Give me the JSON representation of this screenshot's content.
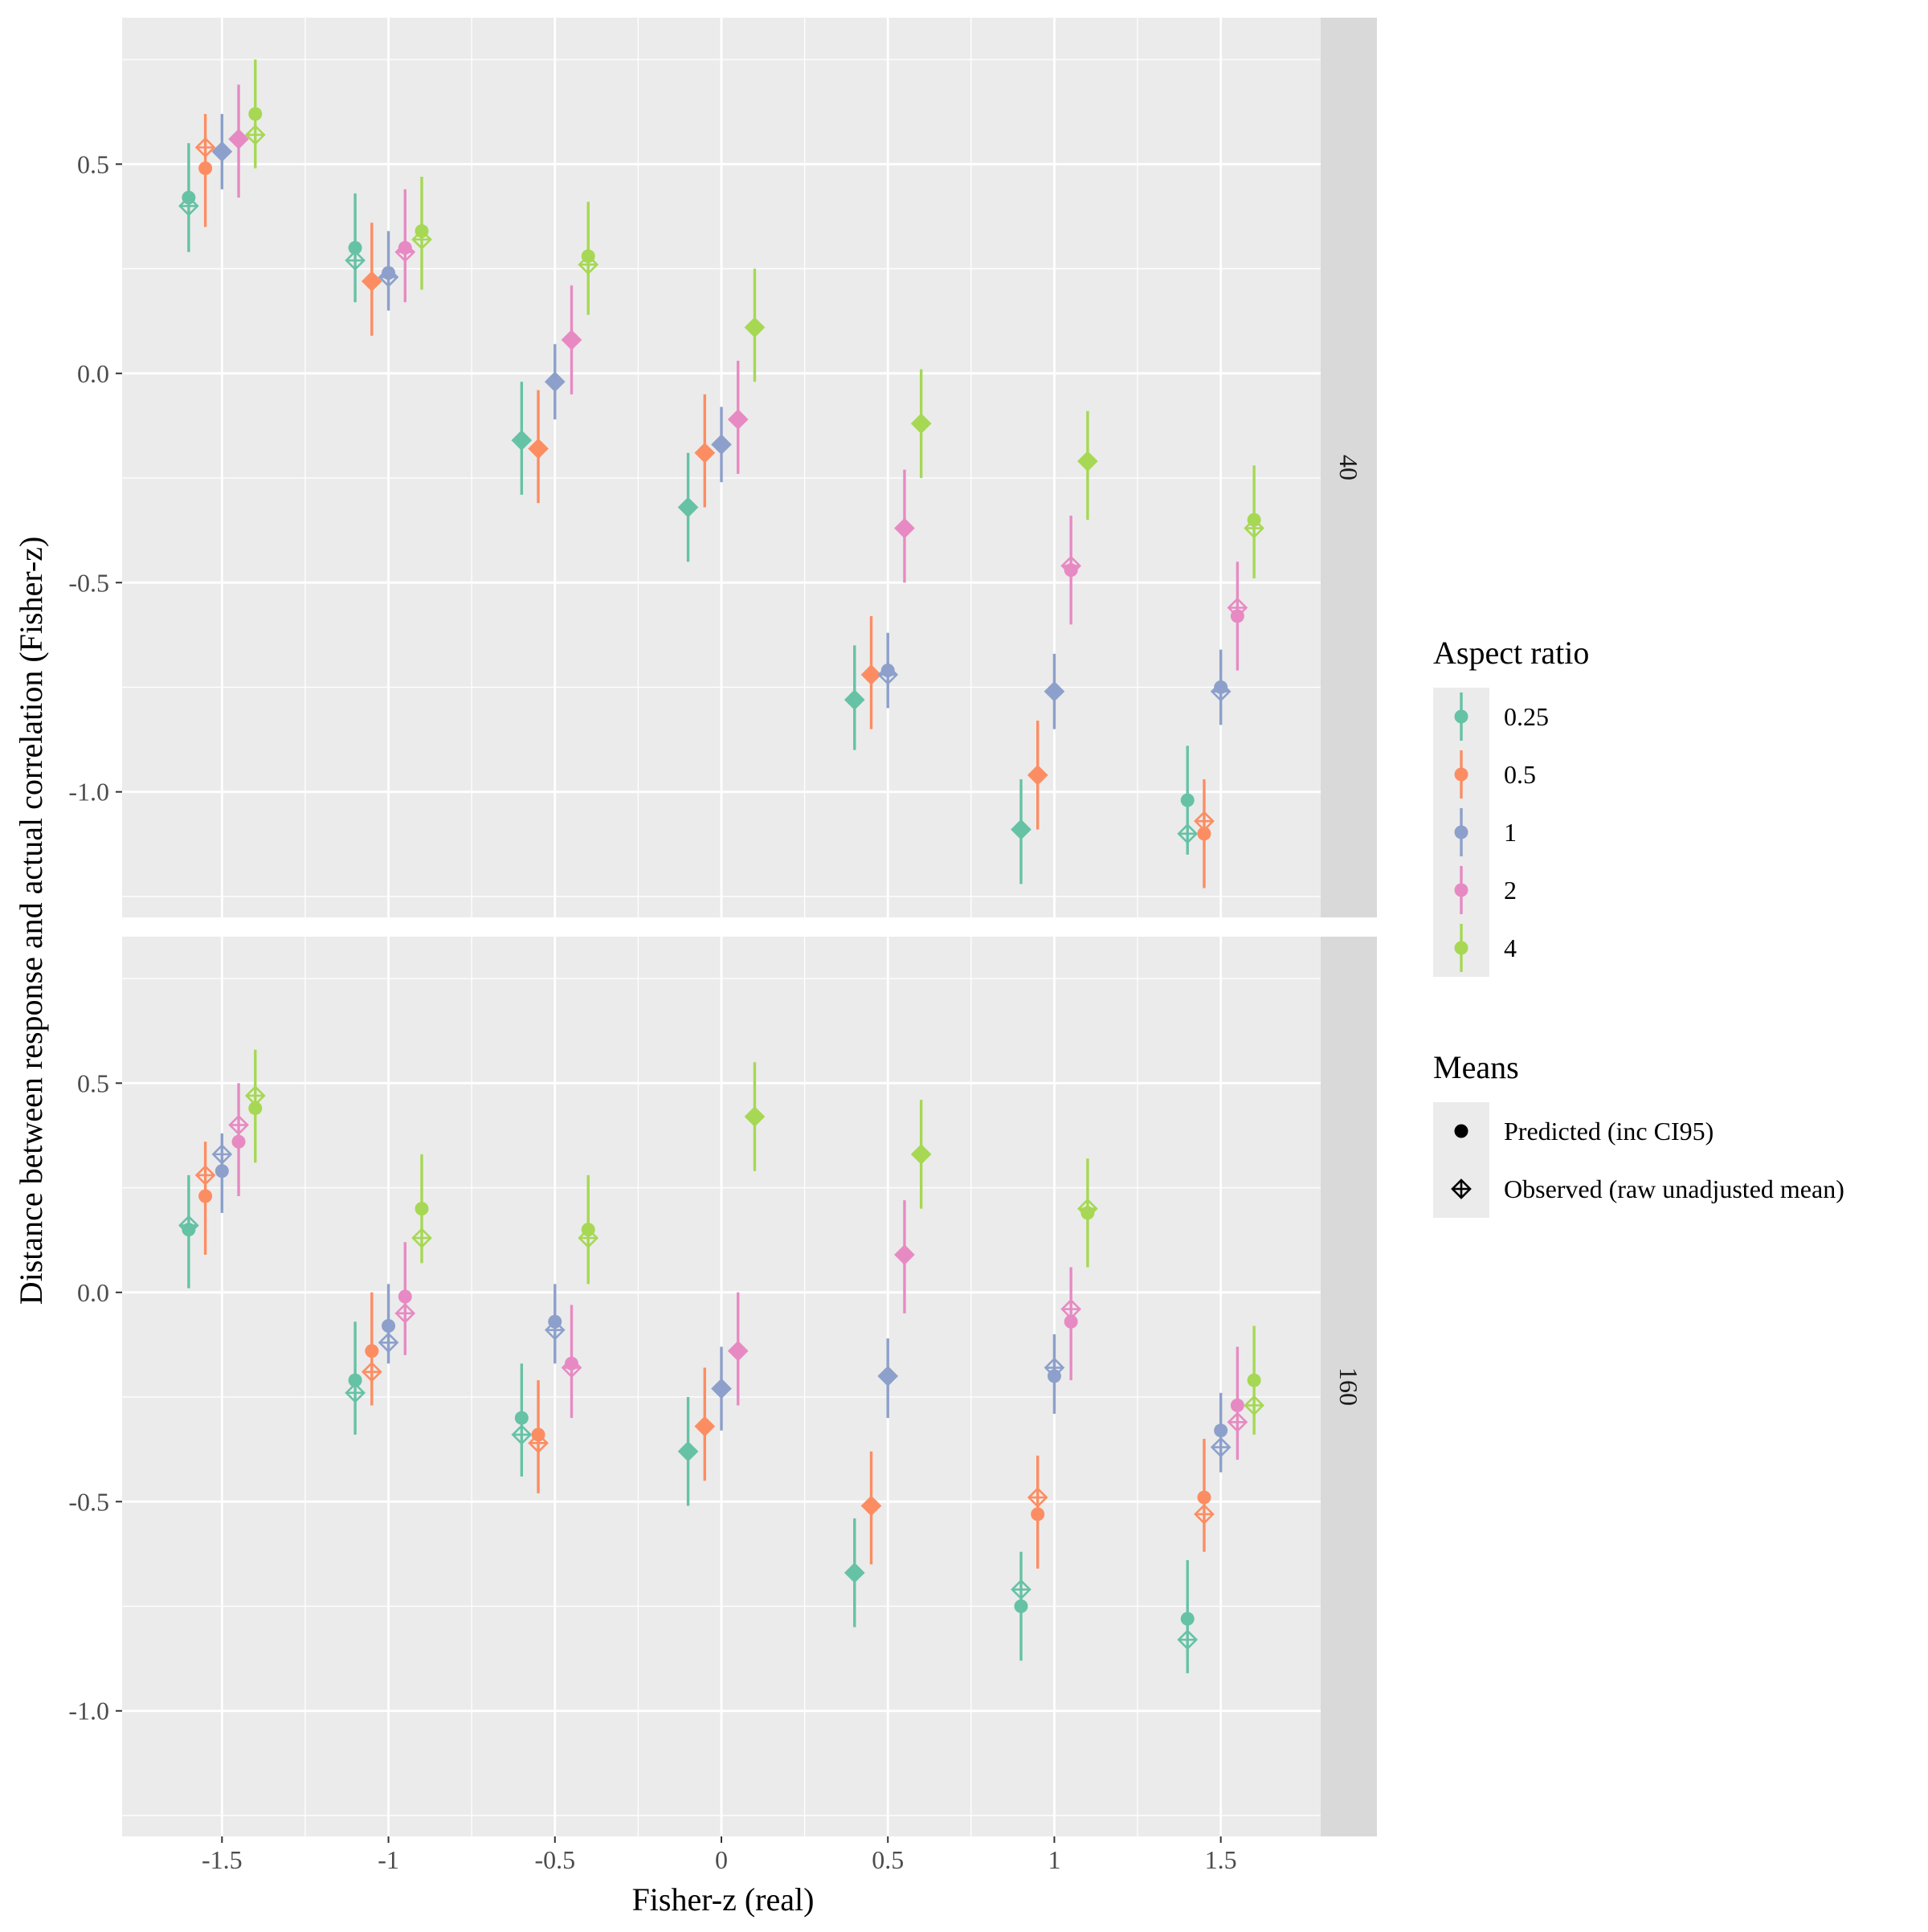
{
  "chart_data": {
    "type": "scatter",
    "title": "",
    "xlabel": "Fisher-z (real)",
    "ylabel": "Distance between response and actual correlation (Fisher-z)",
    "x_ticks": [
      -1.5,
      -1,
      -0.5,
      0,
      0.5,
      1,
      1.5
    ],
    "x_tick_labels": [
      "-1.5",
      "-1",
      "-0.5",
      "0",
      "0.5",
      "1",
      "1.5"
    ],
    "y_ticks": [
      0.5,
      0.0,
      -0.5,
      -1.0
    ],
    "y_tick_labels": [
      "0.5",
      "0.0",
      "-0.5",
      "-1.0"
    ],
    "xlim": [
      -1.8,
      1.8
    ],
    "ylim": [
      -1.3,
      0.85
    ],
    "dodge": [
      -0.1,
      -0.05,
      0,
      0.05,
      0.1
    ],
    "legend": {
      "aspect": {
        "title": "Aspect ratio",
        "entries": [
          {
            "label": "0.25",
            "color": "#66C2A5"
          },
          {
            "label": "0.5",
            "color": "#FC8D62"
          },
          {
            "label": "1",
            "color": "#8DA0CB"
          },
          {
            "label": "2",
            "color": "#E78AC3"
          },
          {
            "label": "4",
            "color": "#A6D854"
          }
        ]
      },
      "means": {
        "title": "Means",
        "entries": [
          {
            "label": "Predicted (inc CI95)",
            "shape": "circle"
          },
          {
            "label": "Observed (raw unadjusted mean)",
            "shape": "diamond-plus"
          }
        ]
      }
    },
    "panels": [
      {
        "strip": "40",
        "series": [
          {
            "name": "0.25",
            "x": [
              -1.5,
              -1,
              -0.5,
              0,
              0.5,
              1,
              1.5
            ],
            "predicted": [
              0.42,
              0.3,
              -0.16,
              -0.32,
              -0.78,
              -1.09,
              -1.02
            ],
            "lower": [
              0.29,
              0.17,
              -0.29,
              -0.45,
              -0.9,
              -1.22,
              -1.15
            ],
            "upper": [
              0.55,
              0.43,
              -0.02,
              -0.19,
              -0.65,
              -0.97,
              -0.89
            ],
            "observed": [
              0.4,
              0.27,
              -0.16,
              -0.32,
              -0.78,
              -1.09,
              -1.1
            ]
          },
          {
            "name": "0.5",
            "x": [
              -1.5,
              -1,
              -0.5,
              0,
              0.5,
              1,
              1.5
            ],
            "predicted": [
              0.49,
              0.22,
              -0.18,
              -0.19,
              -0.72,
              -0.96,
              -1.1
            ],
            "lower": [
              0.35,
              0.09,
              -0.31,
              -0.32,
              -0.85,
              -1.09,
              -1.23
            ],
            "upper": [
              0.62,
              0.36,
              -0.04,
              -0.05,
              -0.58,
              -0.83,
              -0.97
            ],
            "observed": [
              0.54,
              0.22,
              -0.18,
              -0.19,
              -0.72,
              -0.96,
              -1.07
            ]
          },
          {
            "name": "1",
            "x": [
              -1.5,
              -1,
              -0.5,
              0,
              0.5,
              1,
              1.5
            ],
            "predicted": [
              0.53,
              0.24,
              -0.02,
              -0.17,
              -0.71,
              -0.76,
              -0.75
            ],
            "lower": [
              0.44,
              0.15,
              -0.11,
              -0.26,
              -0.8,
              -0.85,
              -0.84
            ],
            "upper": [
              0.62,
              0.34,
              0.07,
              -0.08,
              -0.62,
              -0.67,
              -0.66
            ],
            "observed": [
              0.53,
              0.23,
              -0.02,
              -0.17,
              -0.72,
              -0.76,
              -0.76
            ]
          },
          {
            "name": "2",
            "x": [
              -1.5,
              -1,
              -0.5,
              0,
              0.5,
              1,
              1.5
            ],
            "predicted": [
              0.56,
              0.3,
              0.08,
              -0.11,
              -0.37,
              -0.47,
              -0.58
            ],
            "lower": [
              0.42,
              0.17,
              -0.05,
              -0.24,
              -0.5,
              -0.6,
              -0.71
            ],
            "upper": [
              0.69,
              0.44,
              0.21,
              0.03,
              -0.23,
              -0.34,
              -0.45
            ],
            "observed": [
              0.56,
              0.29,
              0.08,
              -0.11,
              -0.37,
              -0.46,
              -0.56
            ]
          },
          {
            "name": "4",
            "x": [
              -1.5,
              -1,
              -0.5,
              0,
              0.5,
              1,
              1.5
            ],
            "predicted": [
              0.62,
              0.34,
              0.28,
              0.11,
              -0.12,
              -0.21,
              -0.35
            ],
            "lower": [
              0.49,
              0.2,
              0.14,
              -0.02,
              -0.25,
              -0.35,
              -0.49
            ],
            "upper": [
              0.75,
              0.47,
              0.41,
              0.25,
              0.01,
              -0.09,
              -0.22
            ],
            "observed": [
              0.57,
              0.32,
              0.26,
              0.11,
              -0.12,
              -0.21,
              -0.37
            ]
          }
        ]
      },
      {
        "strip": "160",
        "series": [
          {
            "name": "0.25",
            "x": [
              -1.5,
              -1,
              -0.5,
              0,
              0.5,
              1,
              1.5
            ],
            "predicted": [
              0.15,
              -0.21,
              -0.3,
              -0.38,
              -0.67,
              -0.75,
              -0.78
            ],
            "lower": [
              0.01,
              -0.34,
              -0.44,
              -0.51,
              -0.8,
              -0.88,
              -0.91
            ],
            "upper": [
              0.28,
              -0.07,
              -0.17,
              -0.25,
              -0.54,
              -0.62,
              -0.64
            ],
            "observed": [
              0.16,
              -0.24,
              -0.34,
              -0.38,
              -0.67,
              -0.71,
              -0.83
            ]
          },
          {
            "name": "0.5",
            "x": [
              -1.5,
              -1,
              -0.5,
              0,
              0.5,
              1,
              1.5
            ],
            "predicted": [
              0.23,
              -0.14,
              -0.34,
              -0.32,
              -0.51,
              -0.53,
              -0.49
            ],
            "lower": [
              0.09,
              -0.27,
              -0.48,
              -0.45,
              -0.65,
              -0.66,
              -0.62
            ],
            "upper": [
              0.36,
              0.0,
              -0.21,
              -0.18,
              -0.38,
              -0.39,
              -0.35
            ],
            "observed": [
              0.28,
              -0.19,
              -0.36,
              -0.32,
              -0.51,
              -0.49,
              -0.53
            ]
          },
          {
            "name": "1",
            "x": [
              -1.5,
              -1,
              -0.5,
              0,
              0.5,
              1,
              1.5
            ],
            "predicted": [
              0.29,
              -0.08,
              -0.07,
              -0.23,
              -0.2,
              -0.2,
              -0.33
            ],
            "lower": [
              0.19,
              -0.17,
              -0.17,
              -0.33,
              -0.3,
              -0.29,
              -0.43
            ],
            "upper": [
              0.38,
              0.02,
              0.02,
              -0.13,
              -0.11,
              -0.1,
              -0.24
            ],
            "observed": [
              0.33,
              -0.12,
              -0.09,
              -0.23,
              -0.2,
              -0.18,
              -0.37
            ]
          },
          {
            "name": "2",
            "x": [
              -1.5,
              -1,
              -0.5,
              0,
              0.5,
              1,
              1.5
            ],
            "predicted": [
              0.36,
              -0.01,
              -0.17,
              -0.14,
              0.09,
              -0.07,
              -0.27
            ],
            "lower": [
              0.23,
              -0.15,
              -0.3,
              -0.27,
              -0.05,
              -0.21,
              -0.4
            ],
            "upper": [
              0.5,
              0.12,
              -0.03,
              0.0,
              0.22,
              0.06,
              -0.13
            ],
            "observed": [
              0.4,
              -0.05,
              -0.18,
              -0.14,
              0.09,
              -0.04,
              -0.31
            ]
          },
          {
            "name": "4",
            "x": [
              -1.5,
              -1,
              -0.5,
              0,
              0.5,
              1,
              1.5
            ],
            "predicted": [
              0.44,
              0.2,
              0.15,
              0.42,
              0.33,
              0.19,
              -0.21
            ],
            "lower": [
              0.31,
              0.07,
              0.02,
              0.29,
              0.2,
              0.06,
              -0.34
            ],
            "upper": [
              0.58,
              0.33,
              0.28,
              0.55,
              0.46,
              0.32,
              -0.08
            ],
            "observed": [
              0.47,
              0.13,
              0.13,
              0.42,
              0.33,
              0.2,
              -0.27
            ]
          }
        ]
      }
    ]
  }
}
